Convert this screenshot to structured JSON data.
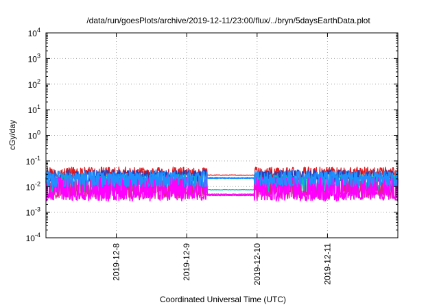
{
  "chart_data": {
    "type": "line",
    "title": "/data/run/goesPlots/archive/2019-12-11/23:00/flux/../bryn/5daysEarthData.plot",
    "xlabel": "Coordinated Universal Time (UTC)",
    "ylabel": "cGy/day",
    "y_scale": "log",
    "ylim": [
      0.0001,
      10000
    ],
    "y_ticks": [
      {
        "value": 0.0001,
        "exp": "-4"
      },
      {
        "value": 0.001,
        "exp": "-3"
      },
      {
        "value": 0.01,
        "exp": "-2"
      },
      {
        "value": 0.1,
        "exp": "-1"
      },
      {
        "value": 1,
        "exp": "0"
      },
      {
        "value": 10,
        "exp": "1"
      },
      {
        "value": 100,
        "exp": "2"
      },
      {
        "value": 1000,
        "exp": "3"
      },
      {
        "value": 10000,
        "exp": "4"
      }
    ],
    "y_tick_base": "10",
    "xlim": [
      "2019-12-07T00:00",
      "2019-12-12T00:00"
    ],
    "x_ticks": [
      "2019-12-8",
      "2019-12-9",
      "2019-12-10",
      "2019-12-11"
    ],
    "x_tick_times": [
      "2019-12-08T00:00",
      "2019-12-09T00:00",
      "2019-12-10T00:00",
      "2019-12-11T00:00"
    ],
    "grid": true,
    "data_gap": [
      "2019-12-09T07:00",
      "2019-12-09T23:00"
    ],
    "series": [
      {
        "color": "#e41a1c",
        "base": 0.032,
        "spike": 0.058,
        "dip": 0.022,
        "gap_level": 0.028
      },
      {
        "color": "#1f3ec0",
        "base": 0.026,
        "spike": 0.045,
        "dip": 0.018,
        "gap_level": 0.022
      },
      {
        "color": "#00c0b0",
        "base": 0.013,
        "spike": 0.03,
        "dip": 0.006,
        "gap_level": 0.0075
      },
      {
        "color": "#e02090",
        "base": 0.0065,
        "spike": 0.02,
        "dip": 0.0042,
        "gap_level": 0.0045
      },
      {
        "color": "#ff00ff",
        "base": 0.0055,
        "spike": 0.024,
        "dip": 0.0034,
        "gap_level": 0.005
      },
      {
        "color": "#1f90ff",
        "base": 0.022,
        "spike": 0.04,
        "dip": 0.012,
        "gap_level": 0.021
      }
    ]
  }
}
